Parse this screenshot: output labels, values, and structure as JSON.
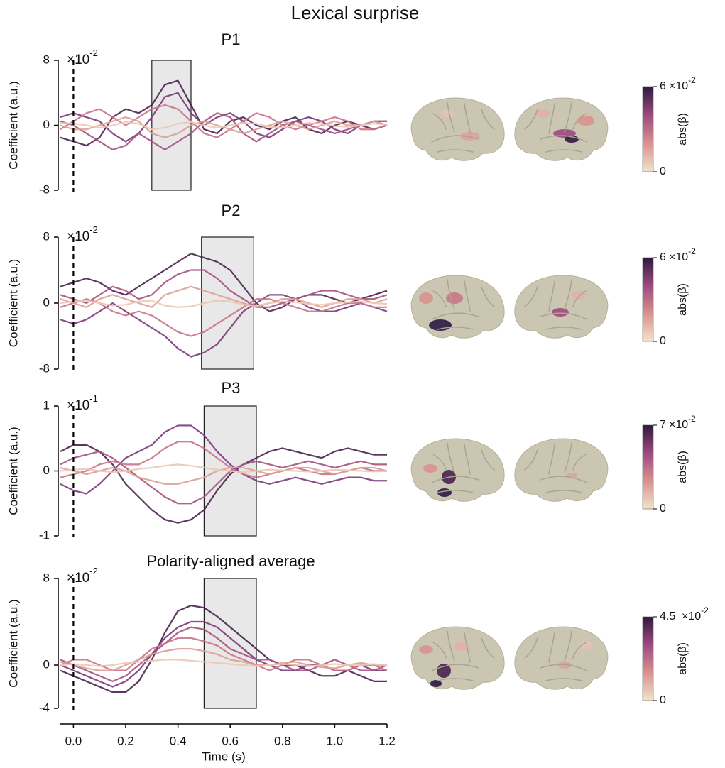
{
  "title": "Lexical surprise",
  "chart_data": [
    {
      "type": "line",
      "title": "P1",
      "ylabel": "Coefficient (a.u.)",
      "y_multiplier": {
        "base": "×10",
        "exponent": "-2"
      },
      "xlim": [
        -0.05,
        1.2
      ],
      "ylim": [
        -8,
        8
      ],
      "yticks": [
        -8,
        0,
        8
      ],
      "event_x": 0,
      "window": [
        0.3,
        0.45
      ],
      "x": [
        -0.05,
        0,
        0.05,
        0.1,
        0.15,
        0.2,
        0.25,
        0.3,
        0.35,
        0.4,
        0.45,
        0.5,
        0.55,
        0.6,
        0.65,
        0.7,
        0.75,
        0.8,
        0.85,
        0.9,
        0.95,
        1.0,
        1.05,
        1.1,
        1.15,
        1.2
      ],
      "series": [
        {
          "color": "#4a2150",
          "values": [
            -1.5,
            -2,
            -2.5,
            -1.5,
            1,
            2,
            1.5,
            2.5,
            5,
            5.5,
            2.5,
            -0.5,
            -1,
            0.5,
            1,
            0,
            -0.5,
            0.5,
            1,
            -0.5,
            -1,
            0,
            0.5,
            0,
            -0.5,
            0
          ]
        },
        {
          "color": "#7b3a7a",
          "values": [
            1,
            1.5,
            1,
            0.5,
            -1,
            -2,
            -1,
            1,
            3.5,
            4,
            1.5,
            0,
            1,
            1.5,
            0.5,
            -1,
            -1.5,
            -0.5,
            0.5,
            1,
            0.5,
            -0.5,
            -1,
            0,
            0.5,
            0.5
          ]
        },
        {
          "color": "#a6527f",
          "values": [
            0.5,
            0,
            -1,
            -2,
            -3,
            -2.5,
            -1,
            -2,
            -3,
            -2,
            -1,
            0.5,
            1.5,
            1,
            -1,
            -2,
            -1,
            0,
            0.5,
            0,
            -0.5,
            -1,
            -0.5,
            0,
            0.5,
            0
          ]
        },
        {
          "color": "#c9728a",
          "values": [
            -0.5,
            0.5,
            1.5,
            2,
            1,
            0,
            1,
            2,
            2.5,
            2,
            0.5,
            -1,
            -1.5,
            -0.5,
            0.5,
            1.5,
            1,
            0,
            -0.5,
            0,
            0.5,
            1,
            0.5,
            -0.5,
            -0.5,
            0
          ]
        },
        {
          "color": "#dc9e96",
          "values": [
            0,
            -0.5,
            -0.5,
            0,
            0.5,
            1,
            0.5,
            -1,
            -1.5,
            -1,
            0,
            0.5,
            0,
            -0.5,
            -1,
            -0.5,
            0,
            0.5,
            0,
            -0.5,
            0,
            0.5,
            0,
            0,
            0.5,
            0
          ]
        },
        {
          "color": "#ecc9b4",
          "values": [
            0.3,
            0.2,
            0,
            -0.3,
            0,
            0.4,
            0.2,
            -0.5,
            -0.3,
            0.2,
            0.4,
            0,
            -0.3,
            0,
            0.3,
            0.2,
            -0.2,
            -0.3,
            0,
            0.3,
            0.2,
            -0.1,
            -0.2,
            0,
            0.2,
            0.1
          ]
        }
      ],
      "colorbar": {
        "label": "abs(β)",
        "lim": [
          0,
          6
        ],
        "ticks": [
          0,
          6
        ],
        "base": "×10",
        "exponent": "-2",
        "colors": [
          "#f1e3c8",
          "#d9928f",
          "#9c4a7e",
          "#2e1a42"
        ]
      }
    },
    {
      "type": "line",
      "title": "P2",
      "ylabel": "Coefficient (a.u.)",
      "y_multiplier": {
        "base": "×10",
        "exponent": "-2"
      },
      "xlim": [
        -0.05,
        1.2
      ],
      "ylim": [
        -8,
        8
      ],
      "yticks": [
        -8,
        0,
        8
      ],
      "event_x": 0,
      "window": [
        0.49,
        0.69
      ],
      "x": [
        -0.05,
        0,
        0.05,
        0.1,
        0.15,
        0.2,
        0.25,
        0.3,
        0.35,
        0.4,
        0.45,
        0.5,
        0.55,
        0.6,
        0.65,
        0.7,
        0.75,
        0.8,
        0.85,
        0.9,
        0.95,
        1.0,
        1.05,
        1.1,
        1.15,
        1.2
      ],
      "series": [
        {
          "color": "#4a2150",
          "values": [
            2,
            2.5,
            3,
            2.5,
            1.5,
            1,
            2,
            3,
            4,
            5,
            6,
            5.5,
            5,
            4,
            2,
            0,
            -1,
            -0.5,
            0.5,
            1,
            1,
            0.5,
            0,
            0.5,
            1,
            1.5
          ]
        },
        {
          "color": "#7b3a7a",
          "values": [
            -2,
            -2.5,
            -2,
            -1,
            0,
            -1,
            -2,
            -3,
            -4,
            -5.5,
            -6.5,
            -6,
            -5,
            -3,
            -1,
            0,
            1,
            1,
            0.5,
            -0.5,
            -1,
            -1,
            -0.5,
            0,
            -0.5,
            -1
          ]
        },
        {
          "color": "#a6527f",
          "values": [
            1,
            0.5,
            0,
            1,
            2,
            1.5,
            0.5,
            1,
            2.5,
            3.5,
            4,
            4,
            3,
            1.5,
            0.5,
            -0.5,
            -0.5,
            0,
            0.5,
            1,
            1.5,
            1.5,
            1,
            0.5,
            0.5,
            1
          ]
        },
        {
          "color": "#c9728a",
          "values": [
            -0.5,
            0,
            0.5,
            0,
            -1,
            -1.5,
            -1,
            -1.5,
            -2.5,
            -3.5,
            -4,
            -3.5,
            -2.5,
            -1.5,
            -0.5,
            0.5,
            0.5,
            0,
            -0.5,
            -1,
            -1,
            -0.5,
            0,
            0,
            -0.5,
            -0.5
          ]
        },
        {
          "color": "#dc9e96",
          "values": [
            0.5,
            0,
            -0.5,
            0.5,
            1,
            0.5,
            0,
            -0.5,
            1,
            1.5,
            2,
            1.5,
            1,
            0.5,
            0,
            -0.5,
            0,
            0.5,
            0.5,
            0,
            -0.5,
            0,
            0.5,
            0.5,
            0,
            0.5
          ]
        },
        {
          "color": "#ecc9b4",
          "values": [
            0,
            0.2,
            0.3,
            0,
            -0.3,
            -0.2,
            0.2,
            0.3,
            -0.3,
            -0.5,
            -0.4,
            0,
            0.3,
            0.2,
            -0.2,
            -0.3,
            0,
            0.2,
            0.1,
            -0.1,
            -0.2,
            0,
            0.1,
            0.2,
            0,
            -0.1
          ]
        }
      ],
      "colorbar": {
        "label": "abs(β)",
        "lim": [
          0,
          6
        ],
        "ticks": [
          0,
          6
        ],
        "base": "×10",
        "exponent": "-2",
        "colors": [
          "#f1e3c8",
          "#d9928f",
          "#9c4a7e",
          "#2e1a42"
        ]
      }
    },
    {
      "type": "line",
      "title": "P3",
      "ylabel": "Coefficient (a.u.)",
      "y_multiplier": {
        "base": "×10",
        "exponent": "-1"
      },
      "xlim": [
        -0.05,
        1.2
      ],
      "ylim": [
        -1,
        1
      ],
      "yticks": [
        -1,
        0,
        1
      ],
      "event_x": 0,
      "window": [
        0.5,
        0.7
      ],
      "x": [
        -0.05,
        0,
        0.05,
        0.1,
        0.15,
        0.2,
        0.25,
        0.3,
        0.35,
        0.4,
        0.45,
        0.5,
        0.55,
        0.6,
        0.65,
        0.7,
        0.75,
        0.8,
        0.85,
        0.9,
        0.95,
        1.0,
        1.05,
        1.1,
        1.15,
        1.2
      ],
      "series": [
        {
          "color": "#4a2150",
          "values": [
            0.3,
            0.4,
            0.4,
            0.3,
            0.1,
            -0.2,
            -0.4,
            -0.6,
            -0.75,
            -0.8,
            -0.75,
            -0.6,
            -0.3,
            -0.05,
            0.1,
            0.2,
            0.3,
            0.35,
            0.3,
            0.25,
            0.2,
            0.3,
            0.35,
            0.3,
            0.25,
            0.25
          ]
        },
        {
          "color": "#7b3a7a",
          "values": [
            -0.2,
            -0.3,
            -0.35,
            -0.2,
            0,
            0.2,
            0.3,
            0.4,
            0.6,
            0.7,
            0.7,
            0.55,
            0.3,
            0.1,
            -0.05,
            -0.15,
            -0.2,
            -0.15,
            -0.1,
            -0.15,
            -0.2,
            -0.15,
            -0.1,
            -0.1,
            -0.15,
            -0.15
          ]
        },
        {
          "color": "#a6527f",
          "values": [
            0.1,
            0.2,
            0.25,
            0.3,
            0.2,
            0.05,
            -0.1,
            -0.25,
            -0.4,
            -0.5,
            -0.5,
            -0.4,
            -0.2,
            0,
            0.1,
            0.15,
            0.1,
            0.05,
            0.1,
            0.15,
            0.1,
            0.05,
            0.1,
            0.15,
            0.1,
            0.1
          ]
        },
        {
          "color": "#c9728a",
          "values": [
            -0.1,
            -0.05,
            0,
            0.1,
            0.15,
            0.1,
            0.1,
            0.2,
            0.35,
            0.45,
            0.45,
            0.35,
            0.2,
            0.05,
            -0.05,
            -0.1,
            -0.05,
            0,
            0.05,
            0,
            -0.05,
            -0.05,
            0,
            0.05,
            0,
            0
          ]
        },
        {
          "color": "#dc9e96",
          "values": [
            0.05,
            0,
            -0.05,
            0,
            0.05,
            0,
            -0.1,
            -0.15,
            -0.2,
            -0.2,
            -0.15,
            -0.1,
            0,
            0.05,
            0.05,
            0,
            -0.05,
            0,
            0.05,
            0.05,
            0,
            -0.05,
            0,
            0.05,
            0.05,
            0
          ]
        },
        {
          "color": "#ecc9b4",
          "values": [
            0,
            0.02,
            0.03,
            0,
            -0.02,
            0,
            0.03,
            0.05,
            0.08,
            0.1,
            0.08,
            0.05,
            0.02,
            0,
            -0.02,
            0,
            0.02,
            0.01,
            0,
            -0.01,
            0,
            0.02,
            0.01,
            0,
            -0.01,
            0
          ]
        }
      ],
      "colorbar": {
        "label": "abs(β)",
        "lim": [
          0,
          7
        ],
        "ticks": [
          0,
          7
        ],
        "base": "×10",
        "exponent": "-2",
        "colors": [
          "#f1e3c8",
          "#d9928f",
          "#9c4a7e",
          "#2e1a42"
        ]
      }
    },
    {
      "type": "line",
      "title": "Polarity-aligned average",
      "ylabel": "Coefficient (a.u.)",
      "xlabel": "Time (s)",
      "y_multiplier": {
        "base": "×10",
        "exponent": "-2"
      },
      "xlim": [
        -0.05,
        1.2
      ],
      "ylim": [
        -4,
        8
      ],
      "yticks": [
        -4,
        0,
        8
      ],
      "xticks": [
        {
          "value": 0,
          "label": "0.0"
        },
        0.2,
        0.4,
        0.6,
        0.8,
        {
          "value": 1,
          "label": "1.0"
        },
        1.2
      ],
      "event_x": 0,
      "window": [
        0.5,
        0.7
      ],
      "x": [
        -0.05,
        0,
        0.05,
        0.1,
        0.15,
        0.2,
        0.25,
        0.3,
        0.35,
        0.4,
        0.45,
        0.5,
        0.55,
        0.6,
        0.65,
        0.7,
        0.75,
        0.8,
        0.85,
        0.9,
        0.95,
        1.0,
        1.05,
        1.1,
        1.15,
        1.2
      ],
      "series": [
        {
          "color": "#4a2150",
          "values": [
            -0.5,
            -1,
            -1.5,
            -2,
            -2.5,
            -2.5,
            -1.5,
            0.5,
            3,
            5,
            5.5,
            5.3,
            4.5,
            3.5,
            2.5,
            1.5,
            0.5,
            0,
            0,
            -0.5,
            -1,
            -1,
            -0.5,
            -1,
            -1.5,
            -1.5
          ]
        },
        {
          "color": "#7b3a7a",
          "values": [
            0,
            -0.5,
            -1,
            -1.5,
            -2,
            -1.5,
            -0.5,
            1,
            2.5,
            3.5,
            4,
            4,
            3.5,
            2.5,
            1.5,
            0.5,
            0,
            -0.5,
            -0.5,
            0,
            0,
            -0.5,
            -0.5,
            0,
            -0.5,
            -0.5
          ]
        },
        {
          "color": "#a6527f",
          "values": [
            0.5,
            0,
            -0.5,
            -1,
            -1.5,
            -1,
            0,
            1,
            2,
            3,
            3.5,
            3.3,
            2.5,
            1.5,
            1,
            0.5,
            0.5,
            0,
            -0.5,
            -0.5,
            0,
            0.5,
            0,
            -0.5,
            -0.5,
            0
          ]
        },
        {
          "color": "#c9728a",
          "values": [
            0,
            0.5,
            0.5,
            0,
            -0.5,
            -0.5,
            0.5,
            1.5,
            2,
            2.5,
            2.5,
            2.2,
            1.8,
            1,
            0.5,
            0,
            -0.5,
            0,
            0.5,
            0.5,
            0,
            -0.5,
            -0.5,
            0,
            0,
            -0.5
          ]
        },
        {
          "color": "#dc9e96",
          "values": [
            0.3,
            0,
            -0.3,
            -0.5,
            -0.5,
            0,
            0.5,
            1,
            1.3,
            1.5,
            1.5,
            1.3,
            1,
            0.5,
            0.3,
            0,
            0,
            0.2,
            0.3,
            0,
            -0.2,
            -0.3,
            0,
            0.2,
            0,
            0
          ]
        },
        {
          "color": "#ecc9b4",
          "values": [
            0,
            0.1,
            0,
            -0.1,
            0,
            0.2,
            0.3,
            0.4,
            0.5,
            0.5,
            0.4,
            0.3,
            0.2,
            0.1,
            0,
            -0.1,
            0,
            0.1,
            0,
            -0.1,
            0,
            0.1,
            0,
            0,
            0.1,
            0
          ]
        }
      ],
      "colorbar": {
        "label": "abs(β)",
        "lim": [
          0,
          4.5
        ],
        "ticks": [
          0,
          4.5
        ],
        "base": "×10",
        "exponent": "-2",
        "colors": [
          "#f1e3c8",
          "#d9928f",
          "#9c4a7e",
          "#2e1a42"
        ]
      }
    }
  ]
}
